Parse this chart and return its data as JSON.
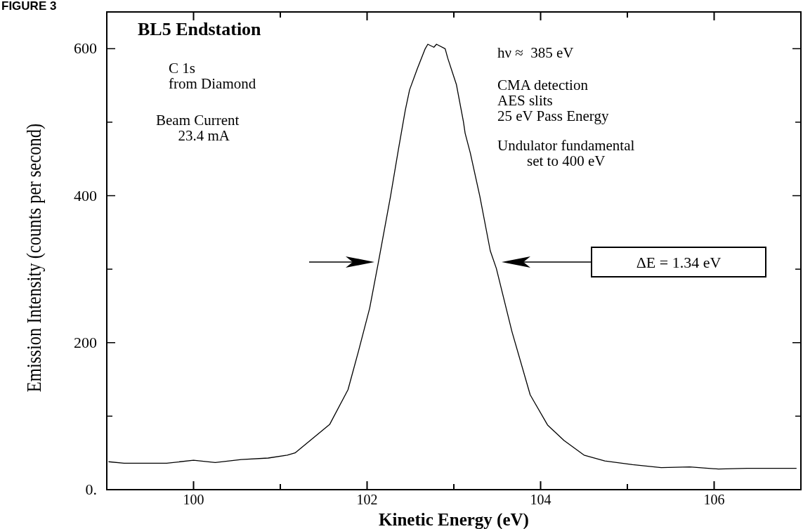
{
  "chart_data": {
    "type": "line",
    "title": "FIGURE 3",
    "xlabel": "Kinetic Energy (eV)",
    "ylabel": "Emission Intensity (counts per second)",
    "x": [
      99.02,
      99.2,
      99.69,
      100,
      100.25,
      100.55,
      100.86,
      101.08,
      101.17,
      101.57,
      101.78,
      101.9,
      102.03,
      102.13,
      102.27,
      102.36,
      102.44,
      102.49,
      102.58,
      102.67,
      102.7,
      102.77,
      102.8,
      102.9,
      102.93,
      103.03,
      103.11,
      103.13,
      103.19,
      103.3,
      103.42,
      103.49,
      103.67,
      103.88,
      104.08,
      104.27,
      104.5,
      104.74,
      105.06,
      105.39,
      105.72,
      106.05,
      106.38,
      106.7,
      106.95
    ],
    "series": [
      {
        "color": "#000000",
        "values": [
          38,
          36,
          36,
          40,
          37,
          41,
          43,
          47,
          50,
          89,
          136,
          188,
          247,
          309,
          399,
          462,
          516,
          544,
          573,
          600,
          606,
          602,
          606,
          600,
          587,
          551,
          501,
          485,
          458,
          399,
          325,
          301,
          215,
          129,
          88,
          67,
          47,
          39,
          34,
          30,
          31,
          28,
          29,
          29,
          29
        ]
      }
    ],
    "xlim": [
      99,
      107
    ],
    "xticks": [
      100,
      {
        "value": 101,
        "label": null
      },
      102,
      {
        "value": 103,
        "label": null
      },
      104,
      {
        "value": 105,
        "label": null
      },
      106
    ],
    "ylim": [
      0,
      650
    ],
    "yticks": [
      {
        "value": 0,
        "label": "0."
      },
      {
        "value": 100,
        "label": null
      },
      200,
      {
        "value": 300,
        "label": null
      },
      400,
      {
        "value": 500,
        "label": null
      },
      600
    ],
    "annotations": [
      "BL5 Endstation",
      "C 1s\nfrom Diamond",
      "Beam Current\n      23.4 mA",
      "hν ≈  385 eV",
      "CMA detection\nAES slits\n25 eV Pass Energy",
      "Undulator fundamental\n        set to 400 eV",
      "ΔE = 1.34 eV"
    ],
    "grid": false,
    "marker": "none",
    "line_style": "solid"
  }
}
